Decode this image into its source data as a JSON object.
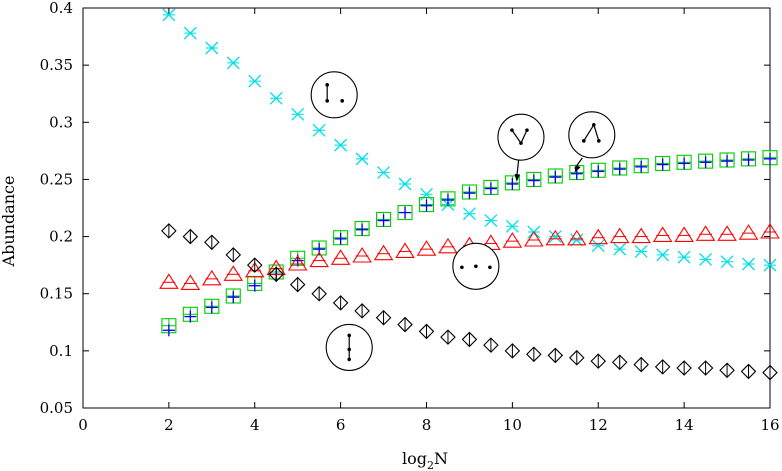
{
  "chart_data": {
    "type": "scatter",
    "title": "",
    "xlabel": "log",
    "xlabel_sub": "2",
    "xlabel_tail": "N",
    "ylabel": "Abundance",
    "xlim": [
      0,
      16
    ],
    "ylim": [
      0.05,
      0.4
    ],
    "xticks": [
      0,
      2,
      4,
      6,
      8,
      10,
      12,
      14,
      16
    ],
    "yticks": [
      0.05,
      0.1,
      0.15,
      0.2,
      0.25,
      0.3,
      0.35,
      0.4
    ],
    "ytick_labels": [
      "0.05",
      "0.1",
      "0.15",
      "0.2",
      "0.25",
      "0.3",
      "0.35",
      "0.4"
    ],
    "grid": false,
    "legend": "none",
    "series": [
      {
        "marker": "x-cross",
        "color": "#00e0e8",
        "x": [
          2,
          2.5,
          3,
          3.5,
          4,
          4.5,
          5,
          5.5,
          6,
          6.5,
          7,
          7.5,
          8,
          8.5,
          9,
          9.5,
          10,
          10.5,
          11,
          11.5,
          12,
          12.5,
          13,
          13.5,
          14,
          14.5,
          15,
          15.5,
          16
        ],
        "y": [
          0.394,
          0.378,
          0.365,
          0.352,
          0.336,
          0.321,
          0.307,
          0.293,
          0.28,
          0.268,
          0.256,
          0.246,
          0.237,
          0.228,
          0.22,
          0.214,
          0.209,
          0.204,
          0.2,
          0.197,
          0.192,
          0.189,
          0.187,
          0.184,
          0.182,
          0.18,
          0.178,
          0.176,
          0.175
        ]
      },
      {
        "marker": "square",
        "color": "#00cc00",
        "x": [
          2,
          2.5,
          3,
          3.5,
          4,
          4.5,
          5,
          5.5,
          6,
          6.5,
          7,
          7.5,
          8,
          8.5,
          9,
          9.5,
          10,
          10.5,
          11,
          11.5,
          12,
          12.5,
          13,
          13.5,
          14,
          14.5,
          15,
          15.5,
          16
        ],
        "y": [
          0.122,
          0.132,
          0.139,
          0.148,
          0.159,
          0.169,
          0.181,
          0.19,
          0.199,
          0.207,
          0.215,
          0.221,
          0.228,
          0.233,
          0.239,
          0.243,
          0.247,
          0.25,
          0.253,
          0.256,
          0.258,
          0.26,
          0.262,
          0.264,
          0.265,
          0.266,
          0.267,
          0.268,
          0.269
        ]
      },
      {
        "marker": "plus",
        "color": "#0000ff",
        "x": [
          2,
          2.5,
          3,
          3.5,
          4,
          4.5,
          5,
          5.5,
          6,
          6.5,
          7,
          7.5,
          8,
          8.5,
          9,
          9.5,
          10,
          10.5,
          11,
          11.5,
          12,
          12.5,
          13,
          13.5,
          14,
          14.5,
          15,
          15.5,
          16
        ],
        "y": [
          0.118,
          0.13,
          0.138,
          0.147,
          0.157,
          0.167,
          0.179,
          0.189,
          0.198,
          0.206,
          0.214,
          0.221,
          0.227,
          0.232,
          0.238,
          0.242,
          0.246,
          0.249,
          0.252,
          0.255,
          0.257,
          0.259,
          0.261,
          0.263,
          0.264,
          0.265,
          0.266,
          0.267,
          0.268
        ]
      },
      {
        "marker": "triangle",
        "color": "#ff0000",
        "x": [
          2,
          2.5,
          3,
          3.5,
          4,
          4.5,
          5,
          5.5,
          6,
          6.5,
          7,
          7.5,
          8,
          8.5,
          9,
          9.5,
          10,
          10.5,
          11,
          11.5,
          12,
          12.5,
          13,
          13.5,
          14,
          14.5,
          15,
          15.5,
          16
        ],
        "y": [
          0.16,
          0.159,
          0.163,
          0.167,
          0.17,
          0.172,
          0.176,
          0.179,
          0.181,
          0.183,
          0.185,
          0.187,
          0.189,
          0.191,
          0.192,
          0.194,
          0.196,
          0.197,
          0.198,
          0.198,
          0.199,
          0.2,
          0.2,
          0.201,
          0.201,
          0.202,
          0.202,
          0.203,
          0.204
        ]
      },
      {
        "marker": "diamond",
        "color": "#000000",
        "x": [
          2,
          2.5,
          3,
          3.5,
          4,
          4.5,
          5,
          5.5,
          6,
          6.5,
          7,
          7.5,
          8,
          8.5,
          9,
          9.5,
          10,
          10.5,
          11,
          11.5,
          12,
          12.5,
          13,
          13.5,
          14,
          14.5,
          15,
          15.5,
          16
        ],
        "y": [
          0.205,
          0.2,
          0.195,
          0.184,
          0.175,
          0.167,
          0.158,
          0.15,
          0.142,
          0.135,
          0.129,
          0.123,
          0.117,
          0.112,
          0.11,
          0.105,
          0.1,
          0.097,
          0.096,
          0.094,
          0.091,
          0.09,
          0.088,
          0.086,
          0.085,
          0.085,
          0.083,
          0.082,
          0.081
        ]
      }
    ],
    "motif_icons": [
      {
        "motif": "edge-plus-isolated-node",
        "x": 5.85,
        "y": 0.324
      },
      {
        "motif": "v-shape-pointing-down",
        "x": 10.2,
        "y": 0.287,
        "arrow_to": [
          10.1,
          0.248
        ]
      },
      {
        "motif": "inverted-v-path",
        "x": 11.85,
        "y": 0.289,
        "arrow_to": [
          11.45,
          0.256
        ]
      },
      {
        "motif": "three-isolated-nodes",
        "x": 9.15,
        "y": 0.174
      },
      {
        "motif": "single-vertical-edge",
        "x": 6.2,
        "y": 0.103
      }
    ]
  }
}
